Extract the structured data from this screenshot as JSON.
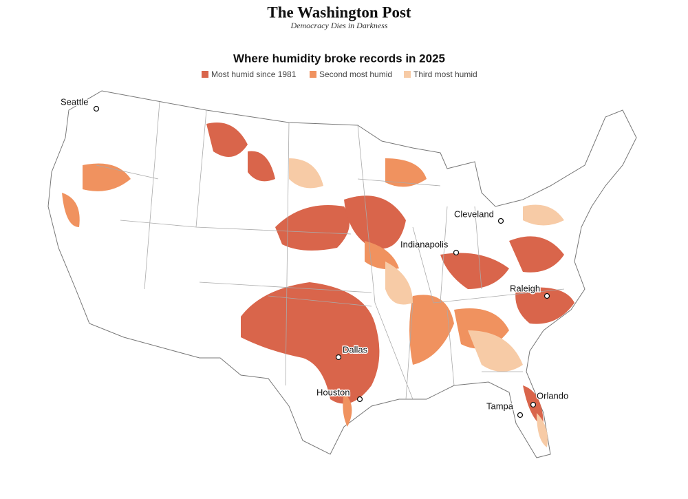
{
  "header": {
    "masthead": "The Washington Post",
    "tagline": "Democracy Dies in Darkness"
  },
  "map": {
    "title": "Where humidity broke records in 2025",
    "legend": [
      {
        "label": "Most humid since 1981",
        "color": "#d9654b"
      },
      {
        "label": "Second most humid",
        "color": "#f0925f"
      },
      {
        "label": "Third most humid",
        "color": "#f7cba6"
      }
    ],
    "cities": [
      "Seattle",
      "Cleveland",
      "Indianapolis",
      "Raleigh",
      "Dallas",
      "Houston",
      "Orlando",
      "Tampa"
    ]
  }
}
